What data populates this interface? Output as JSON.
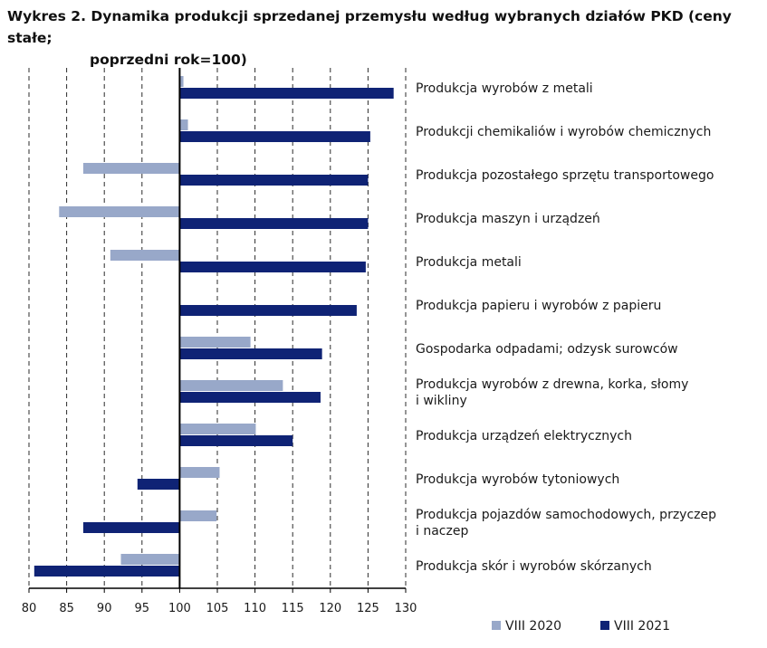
{
  "chart_data": {
    "type": "bar",
    "orientation": "horizontal",
    "title_line1": "Wykres 2. Dynamika produkcji sprzedanej przemysłu według wybranych działów PKD (ceny stałe;",
    "title_line2": "poprzedni rok=100)",
    "xlabel": "",
    "ylabel": "",
    "xlim": [
      80,
      130
    ],
    "baseline": 100,
    "ticks": [
      80,
      85,
      90,
      95,
      100,
      105,
      110,
      115,
      120,
      125,
      130
    ],
    "grid": "vertical-dashed",
    "legend_position": "bottom-right",
    "categories": [
      [
        "Produkcja wyrobów z metali"
      ],
      [
        "Produkcji chemikaliów i wyrobów chemicznych"
      ],
      [
        "Produkcja pozostałego sprzętu transportowego"
      ],
      [
        "Produkcja maszyn i urządzeń"
      ],
      [
        "Produkcja metali"
      ],
      [
        "Produkcja papieru i wyrobów z papieru"
      ],
      [
        "Gospodarka odpadami; odzysk surowców"
      ],
      [
        "Produkcja wyrobów z drewna, korka, słomy",
        "i wikliny"
      ],
      [
        "Produkcja urządzeń elektrycznych"
      ],
      [
        "Produkcja wyrobów tytoniowych"
      ],
      [
        "Produkcja pojazdów samochodowych, przyczep",
        "i naczep"
      ],
      [
        "Produkcja skór i wyrobów skórzanych"
      ]
    ],
    "series": [
      {
        "name": "VIII 2020",
        "color": "#98a8c9",
        "values": [
          100.5,
          101.1,
          87.2,
          84.0,
          90.8,
          100.0,
          109.4,
          113.7,
          110.1,
          105.3,
          104.9,
          92.2
        ]
      },
      {
        "name": "VIII 2021",
        "color": "#0f2375",
        "values": [
          128.4,
          125.3,
          125.0,
          125.0,
          124.7,
          123.5,
          118.9,
          118.7,
          115.0,
          94.4,
          87.2,
          80.7
        ]
      }
    ]
  }
}
